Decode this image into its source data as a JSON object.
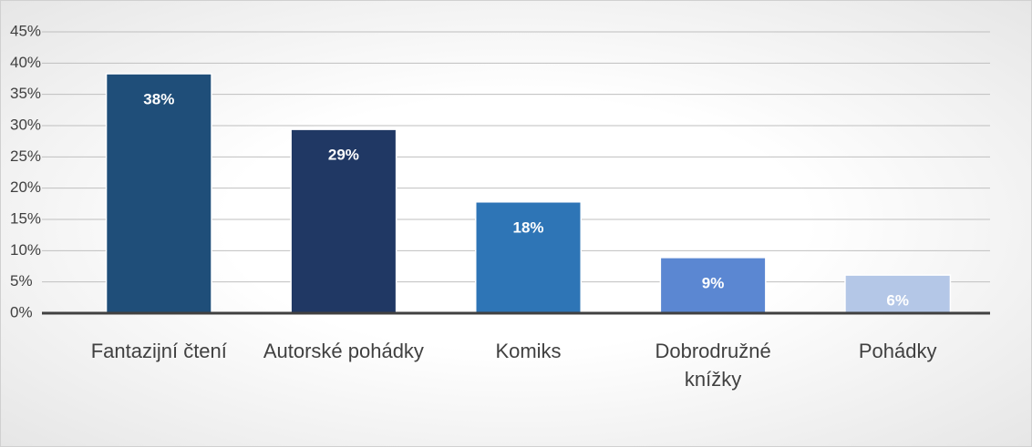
{
  "chart_data": {
    "type": "bar",
    "categories": [
      "Fantazijní čtení",
      "Autorské pohádky",
      "Komiks",
      "Dobrodružné knížky",
      "Pohádky"
    ],
    "values": [
      38.3,
      29.4,
      17.8,
      8.9,
      6.1
    ],
    "value_labels": [
      "38%",
      "29%",
      "18%",
      "9%",
      "6%"
    ],
    "colors": [
      "#1f4e79",
      "#203864",
      "#2e75b6",
      "#5b87d2",
      "#b4c7e7"
    ],
    "ylim": [
      0,
      45
    ],
    "yticks": [
      {
        "value": 0,
        "label": "0%"
      },
      {
        "value": 5,
        "label": "5%"
      },
      {
        "value": 10,
        "label": "10%"
      },
      {
        "value": 15,
        "label": "15%"
      },
      {
        "value": 20,
        "label": "20%"
      },
      {
        "value": 25,
        "label": "25%"
      },
      {
        "value": 30,
        "label": "30%"
      },
      {
        "value": 35,
        "label": "35%"
      },
      {
        "value": 40,
        "label": "40%"
      },
      {
        "value": 45,
        "label": "45%"
      }
    ],
    "grid": true
  }
}
